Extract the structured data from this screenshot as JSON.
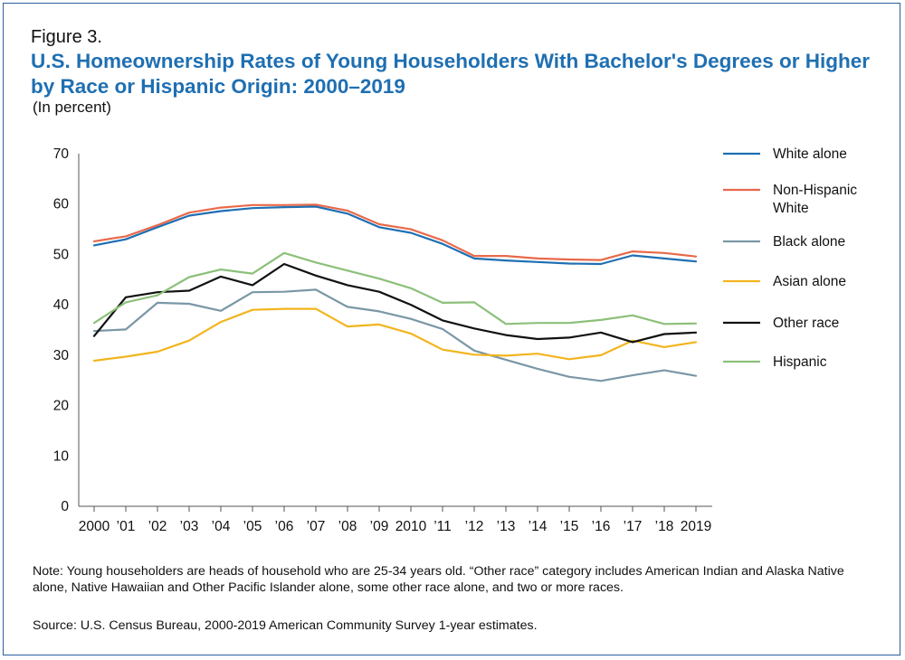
{
  "figure_label": "Figure 3.",
  "title": "U.S. Homeownership Rates of Young Householders With Bachelor's Degrees or Higher by Race or Hispanic Origin: 2000–2019",
  "subtitle": "(In percent)",
  "note": "Note: Young householders are heads of household who are 25-34 years old. “Other race” category includes American Indian and Alaska Native alone, Native Hawaiian and Other Pacific Islander alone, some other race alone, and two or more races.",
  "source": "Source: U.S. Census Bureau, 2000-2019 American Community Survey 1-year estimates.",
  "chart_data": {
    "type": "line",
    "title": "U.S. Homeownership Rates of Young Householders With Bachelor's Degrees or Higher by Race or Hispanic Origin: 2000–2019",
    "xlabel": "",
    "ylabel": "(In percent)",
    "ylim": [
      0,
      70
    ],
    "yticks": [
      0,
      10,
      20,
      30,
      40,
      50,
      60,
      70
    ],
    "grid": false,
    "legend_position": "right",
    "x": [
      2000,
      2001,
      2002,
      2003,
      2004,
      2005,
      2006,
      2007,
      2008,
      2009,
      2010,
      2011,
      2012,
      2013,
      2014,
      2015,
      2016,
      2017,
      2018,
      2019
    ],
    "x_tick_labels": [
      "2000",
      "’01",
      "’02",
      "’03",
      "’04",
      "’05",
      "’06",
      "’07",
      "’08",
      "’09",
      "2010",
      "’11",
      "’12",
      "’13",
      "’14",
      "’15",
      "’16",
      "’17",
      "’18",
      "2019"
    ],
    "series": [
      {
        "name": "White alone",
        "legend_lines": [
          "White alone"
        ],
        "color": "#1f6fb2",
        "values": [
          51.8,
          53.0,
          55.4,
          57.7,
          58.6,
          59.2,
          59.4,
          59.5,
          58.1,
          55.4,
          54.3,
          52.1,
          49.2,
          48.8,
          48.5,
          48.2,
          48.1,
          49.8,
          49.2,
          48.6
        ]
      },
      {
        "name": "Non-Hispanic White",
        "legend_lines": [
          "Non-Hispanic",
          "White"
        ],
        "color": "#e8694a",
        "values": [
          52.6,
          53.6,
          55.8,
          58.3,
          59.3,
          59.8,
          59.8,
          59.9,
          58.7,
          56.0,
          55.0,
          52.8,
          49.7,
          49.7,
          49.2,
          49.0,
          48.9,
          50.6,
          50.3,
          49.6
        ]
      },
      {
        "name": "Black alone",
        "legend_lines": [
          "Black alone"
        ],
        "color": "#7a97a6",
        "values": [
          34.8,
          35.1,
          40.4,
          40.2,
          38.8,
          42.5,
          42.6,
          43.0,
          39.6,
          38.7,
          37.2,
          35.2,
          30.9,
          29.1,
          27.3,
          25.7,
          24.9,
          26.0,
          27.0,
          25.9
        ]
      },
      {
        "name": "Asian alone",
        "legend_lines": [
          "Asian alone"
        ],
        "color": "#f2b51e",
        "values": [
          28.9,
          29.7,
          30.7,
          32.9,
          36.6,
          39.0,
          39.2,
          39.2,
          35.7,
          36.1,
          34.3,
          31.1,
          30.1,
          29.9,
          30.3,
          29.2,
          30.0,
          32.9,
          31.6,
          32.6
        ]
      },
      {
        "name": "Other race",
        "legend_lines": [
          "Other race"
        ],
        "color": "#111111",
        "values": [
          33.8,
          41.5,
          42.5,
          42.8,
          45.6,
          43.9,
          48.1,
          45.8,
          43.9,
          42.6,
          40.0,
          36.9,
          35.3,
          34.0,
          33.2,
          33.5,
          34.5,
          32.6,
          34.2,
          34.5
        ]
      },
      {
        "name": "Hispanic",
        "legend_lines": [
          "Hispanic"
        ],
        "color": "#8cc07a",
        "values": [
          36.4,
          40.5,
          41.9,
          45.5,
          47.0,
          46.2,
          50.3,
          48.4,
          46.8,
          45.2,
          43.3,
          40.4,
          40.5,
          36.2,
          36.4,
          36.4,
          37.0,
          37.9,
          36.2,
          36.3
        ]
      }
    ]
  }
}
